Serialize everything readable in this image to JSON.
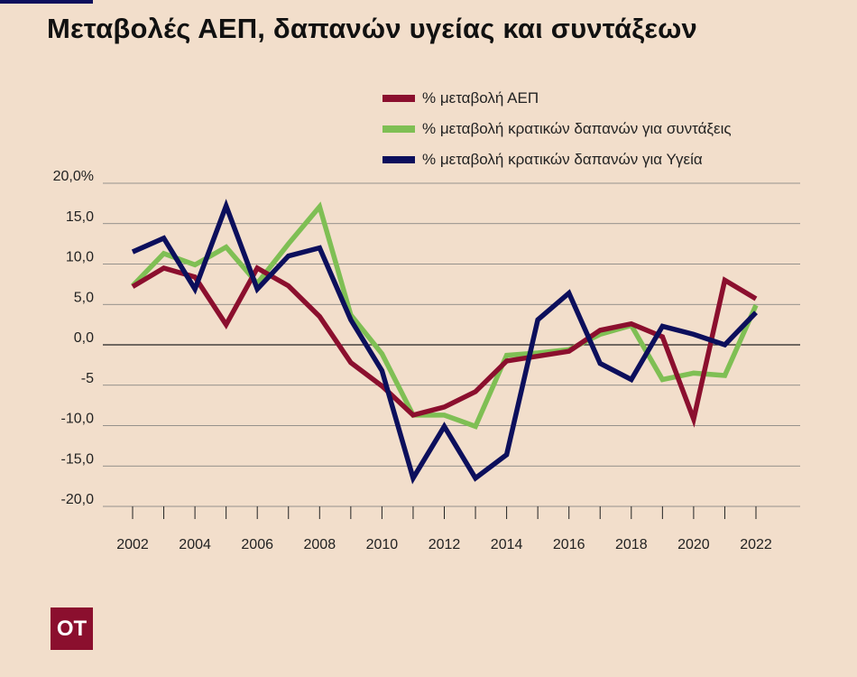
{
  "title": "Μεταβολές  ΑΕΠ, δαπανών υγείας και συντάξεων",
  "logo_text": "ΟΤ",
  "chart_data": {
    "type": "line",
    "x": [
      2002,
      2003,
      2004,
      2005,
      2006,
      2007,
      2008,
      2009,
      2010,
      2011,
      2012,
      2013,
      2014,
      2015,
      2016,
      2017,
      2018,
      2019,
      2020,
      2021,
      2022
    ],
    "x_tick_labels": [
      "2002",
      "2004",
      "2006",
      "2008",
      "2010",
      "2012",
      "2014",
      "2016",
      "2018",
      "2020",
      "2022"
    ],
    "y_tick_values": [
      20,
      15,
      10,
      5,
      0,
      -5,
      -10,
      -15,
      -20
    ],
    "y_tick_labels": [
      "20,0%",
      "15,0",
      "10,0",
      "5,0",
      "0,0",
      "-5",
      "-10,0",
      "-15,0",
      "-20,0"
    ],
    "ylim": [
      -20,
      20
    ],
    "grid": true,
    "legend_position": "top-right",
    "series": [
      {
        "name": "% μεταβολή ΑΕΠ",
        "color": "#8b0f2e",
        "values": [
          7.2,
          9.5,
          8.4,
          2.5,
          9.5,
          7.3,
          3.5,
          -2.2,
          -5.1,
          -8.7,
          -7.7,
          -5.8,
          -2.0,
          -1.4,
          -0.8,
          1.8,
          2.6,
          1.0,
          -9.2,
          8.0,
          5.7
        ]
      },
      {
        "name": "% μεταβολή κρατικών δαπανών για συντάξεις",
        "color": "#7fbf54",
        "values": [
          7.3,
          11.3,
          9.9,
          12.1,
          7.6,
          12.5,
          17.1,
          3.7,
          -1.1,
          -8.7,
          -8.7,
          -10.1,
          -1.3,
          -1.0,
          -0.6,
          1.3,
          2.4,
          -4.3,
          -3.5,
          -3.8,
          4.9
        ]
      },
      {
        "name": "% μεταβολή κρατικών δαπανών για Υγεία",
        "color": "#0c0f5c",
        "values": [
          11.5,
          13.2,
          6.9,
          17.2,
          6.9,
          11.0,
          12.0,
          3.1,
          -3.2,
          -16.5,
          -10.1,
          -16.5,
          -13.6,
          3.1,
          6.4,
          -2.3,
          -4.3,
          2.3,
          1.3,
          0.0,
          4.0
        ]
      }
    ]
  }
}
